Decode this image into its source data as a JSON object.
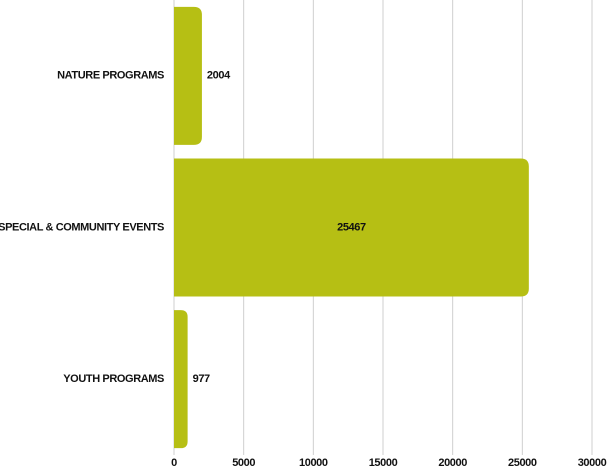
{
  "chart_data": {
    "type": "bar",
    "orientation": "horizontal",
    "categories": [
      "NATURE PROGRAMS",
      "SPECIAL & COMMUNITY EVENTS",
      "YOUTH PROGRAMS"
    ],
    "values": [
      2004,
      25467,
      977
    ],
    "color": "#b6bf14",
    "xlim": [
      0,
      30000
    ],
    "xticks": [
      0,
      5000,
      10000,
      15000,
      20000,
      25000,
      30000
    ],
    "grid": true
  }
}
